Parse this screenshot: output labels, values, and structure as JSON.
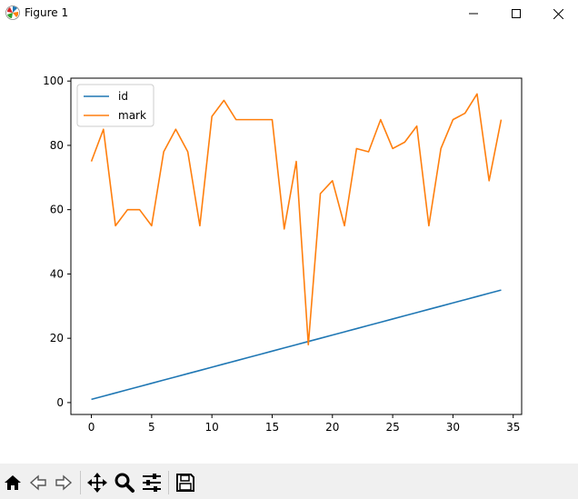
{
  "window": {
    "title": "Figure 1",
    "icons": {
      "app": "matplotlib-logo-icon",
      "minimize": "minimize-icon",
      "maximize": "maximize-icon",
      "close": "close-icon"
    }
  },
  "chart_data": {
    "type": "line",
    "title": "",
    "xlabel": "",
    "ylabel": "",
    "xlim": [
      -1.7,
      35.7
    ],
    "ylim": [
      -3.7,
      100.9
    ],
    "xticks": [
      0,
      5,
      10,
      15,
      20,
      25,
      30,
      35
    ],
    "yticks": [
      0,
      20,
      40,
      60,
      80,
      100
    ],
    "legend": "top-left",
    "grid": false,
    "x": [
      0,
      1,
      2,
      3,
      4,
      5,
      6,
      7,
      8,
      9,
      10,
      11,
      12,
      13,
      14,
      15,
      16,
      17,
      18,
      19,
      20,
      21,
      22,
      23,
      24,
      25,
      26,
      27,
      28,
      29,
      30,
      31,
      32,
      33,
      34
    ],
    "series": [
      {
        "name": "id",
        "color": "#1f77b4",
        "values": [
          1,
          2,
          3,
          4,
          5,
          6,
          7,
          8,
          9,
          10,
          11,
          12,
          13,
          14,
          15,
          16,
          17,
          18,
          19,
          20,
          21,
          22,
          23,
          24,
          25,
          26,
          27,
          28,
          29,
          30,
          31,
          32,
          33,
          34,
          35
        ]
      },
      {
        "name": "mark",
        "color": "#ff7f0e",
        "values": [
          75,
          85,
          55,
          60,
          60,
          55,
          78,
          85,
          78,
          55,
          89,
          94,
          88,
          88,
          88,
          88,
          54,
          75,
          18,
          65,
          69,
          55,
          79,
          78,
          88,
          79,
          81,
          86,
          55,
          79,
          88,
          90,
          96,
          69,
          88
        ]
      }
    ]
  },
  "toolbar": {
    "buttons": [
      "home-icon",
      "back-icon",
      "forward-icon",
      "pan-icon",
      "zoom-icon",
      "configure-subplots-icon",
      "save-icon"
    ]
  }
}
